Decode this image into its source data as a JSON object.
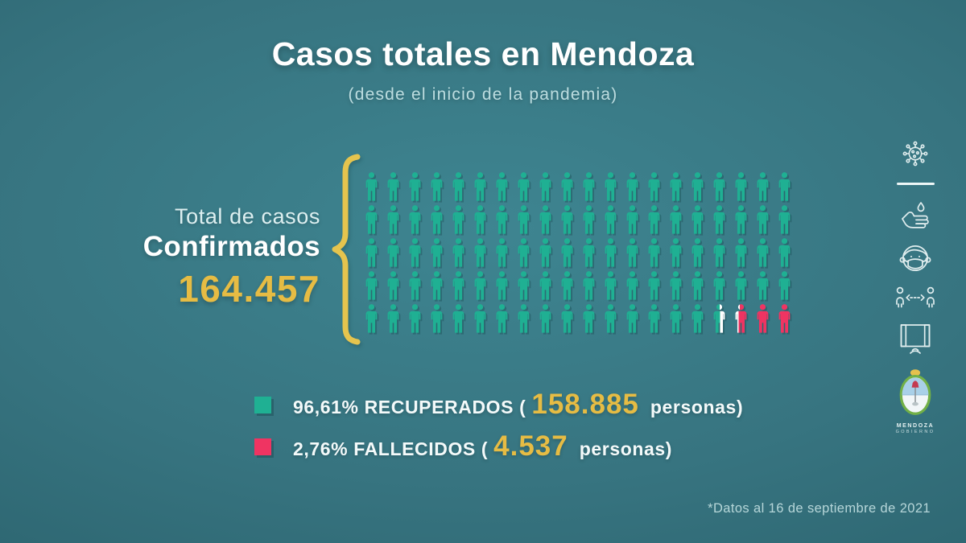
{
  "page": {
    "title": "Casos totales en Mendoza",
    "subtitle": "(desde el inicio de la pandemia)",
    "footnote": "*Datos al 16 de septiembre de 2021"
  },
  "totals": {
    "label_line1": "Total de casos",
    "label_line2": "Confirmados",
    "value": "164.457"
  },
  "chart_data": {
    "type": "pictograph",
    "title": "Casos totales en Mendoza",
    "subtitle": "(desde el inicio de la pandemia)",
    "total_confirmed_label": "Total de casos Confirmados",
    "total_confirmed": 164457,
    "total_confirmed_display": "164.457",
    "grid": {
      "rows": 5,
      "cols": 20,
      "total_icons": 100,
      "icon_unit_percent": 1
    },
    "icon_sequence": [
      {
        "fill": "recovered",
        "count": 96
      },
      {
        "fill": "recovered_active_split",
        "count": 1
      },
      {
        "fill": "active_deceased_split",
        "count": 1
      },
      {
        "fill": "deceased",
        "count": 2
      }
    ],
    "series": [
      {
        "name": "RECUPERADOS",
        "percent": 96.61,
        "percent_display": "96,61%",
        "value": 158885,
        "value_display": "158.885",
        "color": "#1fb093"
      },
      {
        "name": "FALLECIDOS",
        "percent": 2.76,
        "percent_display": "2,76%",
        "value": 4537,
        "value_display": "4.537",
        "color": "#ef3462"
      }
    ],
    "legend_position": "bottom-left",
    "footnote": "*Datos al 16 de septiembre de 2021"
  },
  "legend": {
    "items": [
      {
        "prefix": "96,61% RECUPERADOS (",
        "number": "158.885",
        "suffix": " personas)",
        "color": "#1fb093"
      },
      {
        "prefix": "2,76% FALLECIDOS (",
        "number": "4.537",
        "suffix": " personas)",
        "color": "#ef3462"
      }
    ]
  },
  "sidebar": {
    "icons": [
      "virus-icon",
      "hand-washing-icon",
      "face-mask-icon",
      "social-distancing-icon",
      "open-window-icon"
    ],
    "logo": {
      "line1": "MENDOZA",
      "line2": "GOBIERNO"
    }
  },
  "colors": {
    "background_center": "#3e8591",
    "background_edge": "#2b636e",
    "recovered": "#1fb093",
    "deceased": "#ef3462",
    "active": "#ffffff",
    "accent_yellow": "#e6bc44",
    "brace_yellow": "#e5c44e",
    "text_white": "#ffffff"
  }
}
